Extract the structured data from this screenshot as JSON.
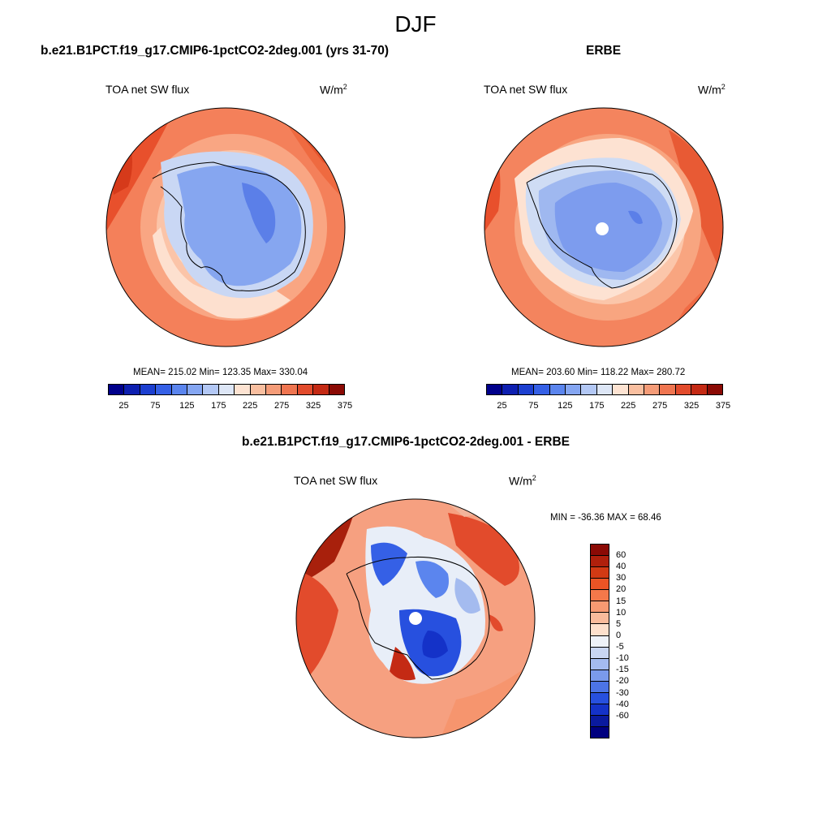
{
  "figure": {
    "title": "DJF"
  },
  "panels": [
    {
      "title": "b.e21.B1PCT.f19_g17.CMIP6-1pctCO2-2deg.001 (yrs 31-70)",
      "variable": "TOA net SW flux",
      "units": "W/m",
      "units_sup": "2",
      "stats": "MEAN= 215.02  Min= 123.35  Max= 330.04",
      "colorbar_labels": [
        "25",
        "75",
        "125",
        "175",
        "225",
        "275",
        "325",
        "375"
      ]
    },
    {
      "title": "ERBE",
      "variable": "TOA net SW flux",
      "units": "W/m",
      "units_sup": "2",
      "stats": "MEAN= 203.60  Min= 118.22  Max= 280.72",
      "colorbar_labels": [
        "25",
        "75",
        "125",
        "175",
        "225",
        "275",
        "325",
        "375"
      ]
    },
    {
      "title": "b.e21.B1PCT.f19_g17.CMIP6-1pctCO2-2deg.001 - ERBE",
      "variable": "TOA net SW flux",
      "units": "W/m",
      "units_sup": "2",
      "stats": "MIN = -36.36 MAX =  68.46",
      "colorbar_labels": [
        "60",
        "40",
        "30",
        "20",
        "15",
        "10",
        "5",
        "0",
        "-5",
        "-10",
        "-15",
        "-20",
        "-30",
        "-40",
        "-60"
      ]
    }
  ],
  "colors": {
    "abs_scale": [
      "#00008b",
      "#0d1fb0",
      "#1c3fd0",
      "#3560e6",
      "#5b85ee",
      "#85a6f2",
      "#b3c8f5",
      "#dde6f6",
      "#fde3d2",
      "#f9bfa0",
      "#f59c78",
      "#ef7550",
      "#e24b2c",
      "#c42a14",
      "#8b0a05"
    ],
    "diff_scale": [
      "#8b0a05",
      "#b0200c",
      "#d23a14",
      "#eb5425",
      "#f4784a",
      "#f79a72",
      "#f9bb9b",
      "#fde0cc",
      "#eef2f8",
      "#c9d6f2",
      "#a4bbef",
      "#7a9aeb",
      "#4c74e6",
      "#2750df",
      "#1432c8",
      "#0a1a9e",
      "#00007f"
    ]
  }
}
